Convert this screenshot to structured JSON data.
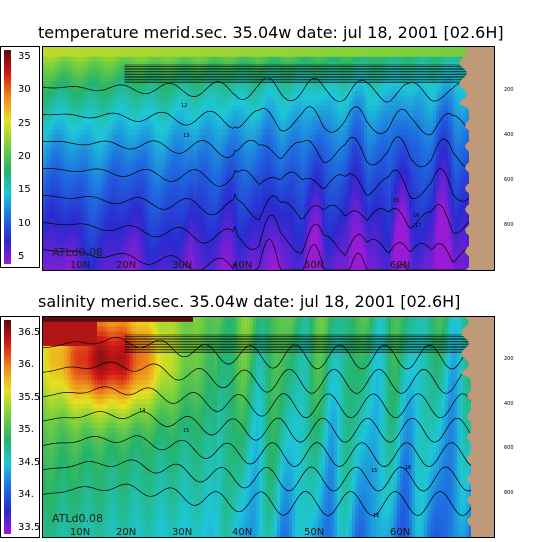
{
  "chart_data": [
    {
      "type": "heatmap",
      "title": "temperature merid.sec. 35.04w   date: jul 18, 2001   [02.6H]",
      "run_label": "ATLd0.08",
      "colorbar": {
        "ticks": [
          "35",
          "30",
          "25",
          "20",
          "15",
          "10",
          "5"
        ],
        "range": [
          4,
          36
        ]
      },
      "x_ticks": [
        "10N",
        "20N",
        "30N",
        "40N",
        "50N",
        "60N"
      ],
      "y_ticks": [
        "200",
        "400",
        "600",
        "800"
      ],
      "isoline_labels": [
        "12",
        "13",
        "15",
        "16",
        "17"
      ],
      "colors": [
        "#9a1bd6",
        "#2a2ad0",
        "#1e6fe0",
        "#1ec7d8",
        "#27b36a",
        "#7fd23a",
        "#e8e020",
        "#f08a1a",
        "#d31818",
        "#5c0c0c"
      ],
      "land_color": "#c09a78"
    },
    {
      "type": "heatmap",
      "title": "salinity merid.sec. 35.04w   date: jul 18, 2001   [02.6H]",
      "run_label": "ATLd0.08",
      "colorbar": {
        "ticks": [
          "36.5",
          "36.",
          "35.5",
          "35.",
          "34.5",
          "34.",
          "33.5"
        ],
        "range": [
          33.4,
          36.7
        ]
      },
      "x_ticks": [
        "10N",
        "20N",
        "30N",
        "40N",
        "50N",
        "60N"
      ],
      "y_ticks": [
        "200",
        "400",
        "600",
        "800"
      ],
      "isoline_labels": [
        "14",
        "15",
        "16",
        "15",
        "16"
      ],
      "colors": [
        "#9a1bd6",
        "#2a2ad0",
        "#1e6fe0",
        "#1ec7d8",
        "#27b36a",
        "#7fd23a",
        "#e8e020",
        "#f08a1a",
        "#d31818",
        "#5c0c0c"
      ],
      "land_color": "#c09a78"
    }
  ]
}
